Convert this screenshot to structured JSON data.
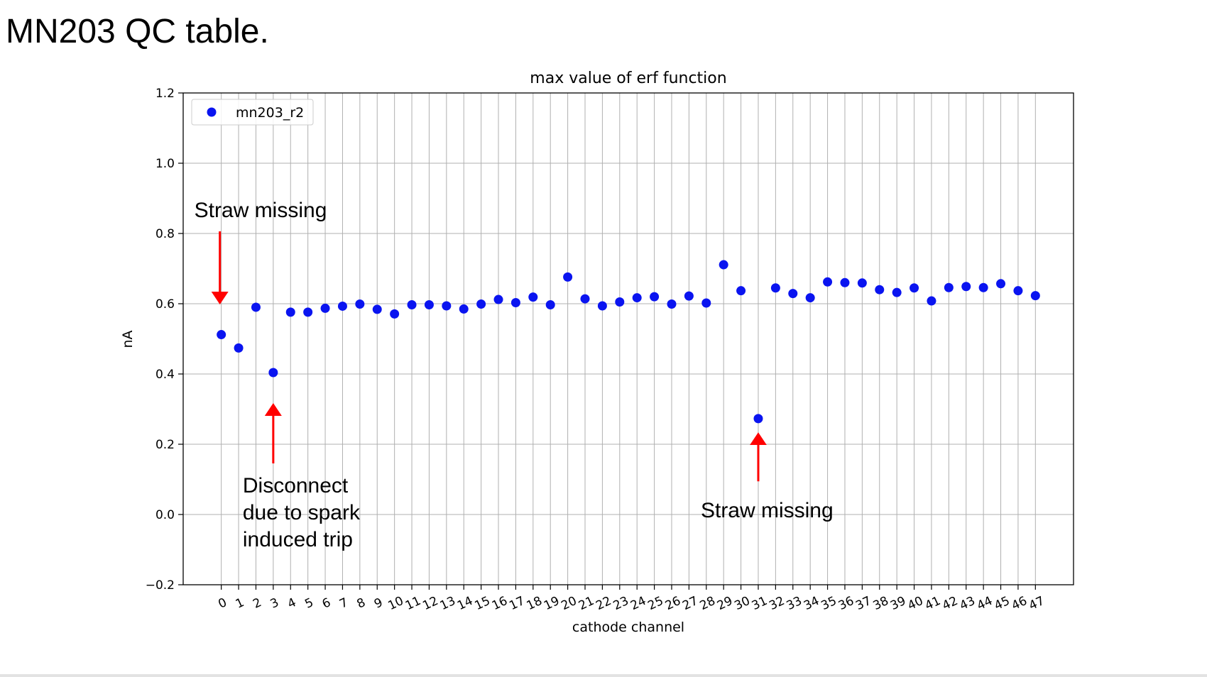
{
  "slide": {
    "title": "MN203 QC table."
  },
  "chart_data": {
    "type": "scatter",
    "title": "max value of erf function",
    "xlabel": "cathode channel",
    "ylabel": "nA",
    "ylim": [
      -0.2,
      1.2
    ],
    "xlim": [
      -2.2,
      49.2
    ],
    "yticks": [
      -0.2,
      0.0,
      0.2,
      0.4,
      0.6,
      0.8,
      1.0,
      1.2
    ],
    "ytick_labels": [
      "−0.2",
      "0.0",
      "0.2",
      "0.4",
      "0.6",
      "0.8",
      "1.0",
      "1.2"
    ],
    "xticks": [
      0,
      1,
      2,
      3,
      4,
      5,
      6,
      7,
      8,
      9,
      10,
      11,
      12,
      13,
      14,
      15,
      16,
      17,
      18,
      19,
      20,
      21,
      22,
      23,
      24,
      25,
      26,
      27,
      28,
      29,
      30,
      31,
      32,
      33,
      34,
      35,
      36,
      37,
      38,
      39,
      40,
      41,
      42,
      43,
      44,
      45,
      46,
      47
    ],
    "grid": true,
    "legend_position": "top-left",
    "series": [
      {
        "name": "mn203_r2",
        "color": "#0a14f0",
        "x": [
          0,
          1,
          2,
          3,
          4,
          5,
          6,
          7,
          8,
          9,
          10,
          11,
          12,
          13,
          14,
          15,
          16,
          17,
          18,
          19,
          20,
          21,
          22,
          23,
          24,
          25,
          26,
          27,
          28,
          29,
          30,
          31,
          32,
          33,
          34,
          35,
          36,
          37,
          38,
          39,
          40,
          41,
          42,
          43,
          44,
          45,
          46,
          47
        ],
        "y": [
          0.512,
          0.474,
          0.59,
          0.404,
          0.576,
          0.576,
          0.587,
          0.593,
          0.599,
          0.584,
          0.571,
          0.597,
          0.597,
          0.594,
          0.585,
          0.599,
          0.612,
          0.603,
          0.619,
          0.597,
          0.676,
          0.614,
          0.594,
          0.605,
          0.617,
          0.62,
          0.599,
          0.622,
          0.602,
          0.711,
          0.637,
          0.273,
          0.645,
          0.629,
          0.617,
          0.662,
          0.66,
          0.659,
          0.64,
          0.632,
          0.645,
          0.608,
          0.646,
          0.649,
          0.646,
          0.657,
          0.637,
          0.623
        ]
      }
    ],
    "annotations": [
      {
        "id": "straw-missing-0",
        "lines": [
          "Straw missing"
        ],
        "target": [
          0,
          0.6
        ],
        "color": "#ff0000"
      },
      {
        "id": "disconnect",
        "lines": [
          "Disconnect",
          "due to spark",
          "induced trip"
        ],
        "target": [
          3,
          0.4
        ],
        "color": "#ff0000"
      },
      {
        "id": "straw-missing-31",
        "lines": [
          "Straw missing"
        ],
        "target": [
          31,
          0.24
        ],
        "color": "#ff0000"
      }
    ]
  }
}
